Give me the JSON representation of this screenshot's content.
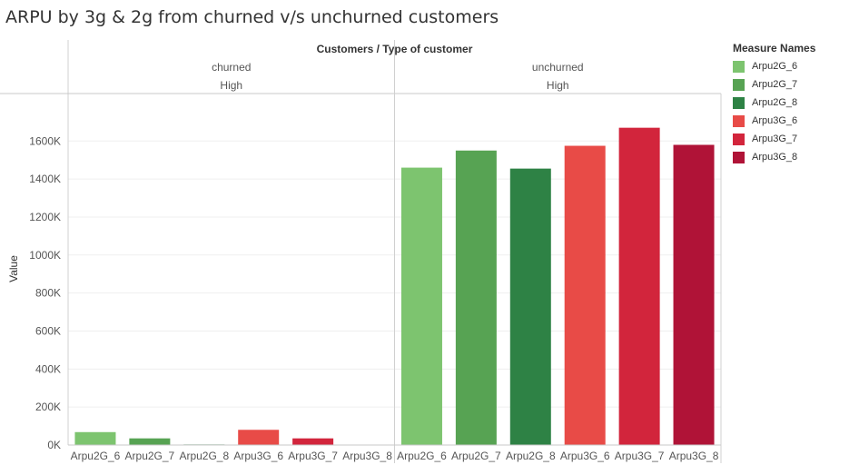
{
  "title": "ARPU by 3g & 2g from churned v/s unchurned customers",
  "chart_data": {
    "type": "bar",
    "header": "Customers / Type of customer",
    "ylabel": "Value",
    "ylim": [
      0,
      1850000
    ],
    "yticks": [
      {
        "value": 0,
        "label": "0K"
      },
      {
        "value": 200000,
        "label": "200K"
      },
      {
        "value": 400000,
        "label": "400K"
      },
      {
        "value": 600000,
        "label": "600K"
      },
      {
        "value": 800000,
        "label": "800K"
      },
      {
        "value": 1000000,
        "label": "1000K"
      },
      {
        "value": 1200000,
        "label": "1200K"
      },
      {
        "value": 1400000,
        "label": "1400K"
      },
      {
        "value": 1600000,
        "label": "1600K"
      }
    ],
    "categories": [
      "Arpu2G_6",
      "Arpu2G_7",
      "Arpu2G_8",
      "Arpu3G_6",
      "Arpu3G_7",
      "Arpu3G_8"
    ],
    "colors": {
      "Arpu2G_6": "#7dc46f",
      "Arpu2G_7": "#57a353",
      "Arpu2G_8": "#2e8245",
      "Arpu3G_6": "#e84b47",
      "Arpu3G_7": "#d2253c",
      "Arpu3G_8": "#b01337"
    },
    "panels": [
      {
        "customers": "churned",
        "type": "High",
        "values": [
          68000,
          35000,
          3000,
          80000,
          35000,
          0
        ]
      },
      {
        "customers": "unchurned",
        "type": "High",
        "values": [
          1460000,
          1550000,
          1455000,
          1575000,
          1670000,
          1580000
        ]
      }
    ]
  },
  "legend": {
    "title": "Measure Names",
    "items": [
      "Arpu2G_6",
      "Arpu2G_7",
      "Arpu2G_8",
      "Arpu3G_6",
      "Arpu3G_7",
      "Arpu3G_8"
    ]
  }
}
